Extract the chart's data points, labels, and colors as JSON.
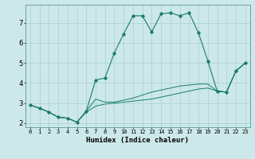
{
  "xlabel": "Humidex (Indice chaleur)",
  "bg_color": "#cce8ea",
  "line_color": "#1a7a6e",
  "grid_color": "#aacfd2",
  "xlim": [
    -0.5,
    23.5
  ],
  "ylim": [
    1.8,
    7.9
  ],
  "xticks": [
    0,
    1,
    2,
    3,
    4,
    5,
    6,
    7,
    8,
    9,
    10,
    11,
    12,
    13,
    14,
    15,
    16,
    17,
    18,
    19,
    20,
    21,
    22,
    23
  ],
  "yticks": [
    2,
    3,
    4,
    5,
    6,
    7
  ],
  "line1_x": [
    0,
    1,
    2,
    3,
    4,
    5,
    6,
    7,
    8,
    9,
    10,
    11,
    12,
    13,
    14,
    15,
    16,
    17,
    18,
    19,
    20,
    21,
    22,
    23
  ],
  "line1_y": [
    2.9,
    2.75,
    2.55,
    2.3,
    2.25,
    2.05,
    2.55,
    2.85,
    2.95,
    3.0,
    3.05,
    3.1,
    3.15,
    3.2,
    3.3,
    3.4,
    3.5,
    3.6,
    3.7,
    3.75,
    3.6,
    3.55,
    4.6,
    5.0
  ],
  "line2_x": [
    0,
    1,
    2,
    3,
    4,
    5,
    6,
    7,
    8,
    9,
    10,
    11,
    12,
    13,
    14,
    15,
    16,
    17,
    18,
    19,
    20,
    21,
    22,
    23
  ],
  "line2_y": [
    2.9,
    2.75,
    2.55,
    2.3,
    2.25,
    2.05,
    2.6,
    3.2,
    3.05,
    3.05,
    3.15,
    3.25,
    3.4,
    3.55,
    3.65,
    3.75,
    3.85,
    3.9,
    3.95,
    3.95,
    3.6,
    3.55,
    4.6,
    5.0
  ],
  "line3_x": [
    0,
    1,
    2,
    3,
    4,
    5,
    6,
    7,
    8,
    9,
    10,
    11,
    12,
    13,
    14,
    15,
    16,
    17,
    18,
    19,
    20,
    21,
    22,
    23
  ],
  "line3_y": [
    2.9,
    2.75,
    2.55,
    2.3,
    2.25,
    2.05,
    2.6,
    4.15,
    4.25,
    5.5,
    6.45,
    7.35,
    7.35,
    6.55,
    7.45,
    7.5,
    7.35,
    7.5,
    6.5,
    5.1,
    3.6,
    3.55,
    4.6,
    5.0
  ]
}
